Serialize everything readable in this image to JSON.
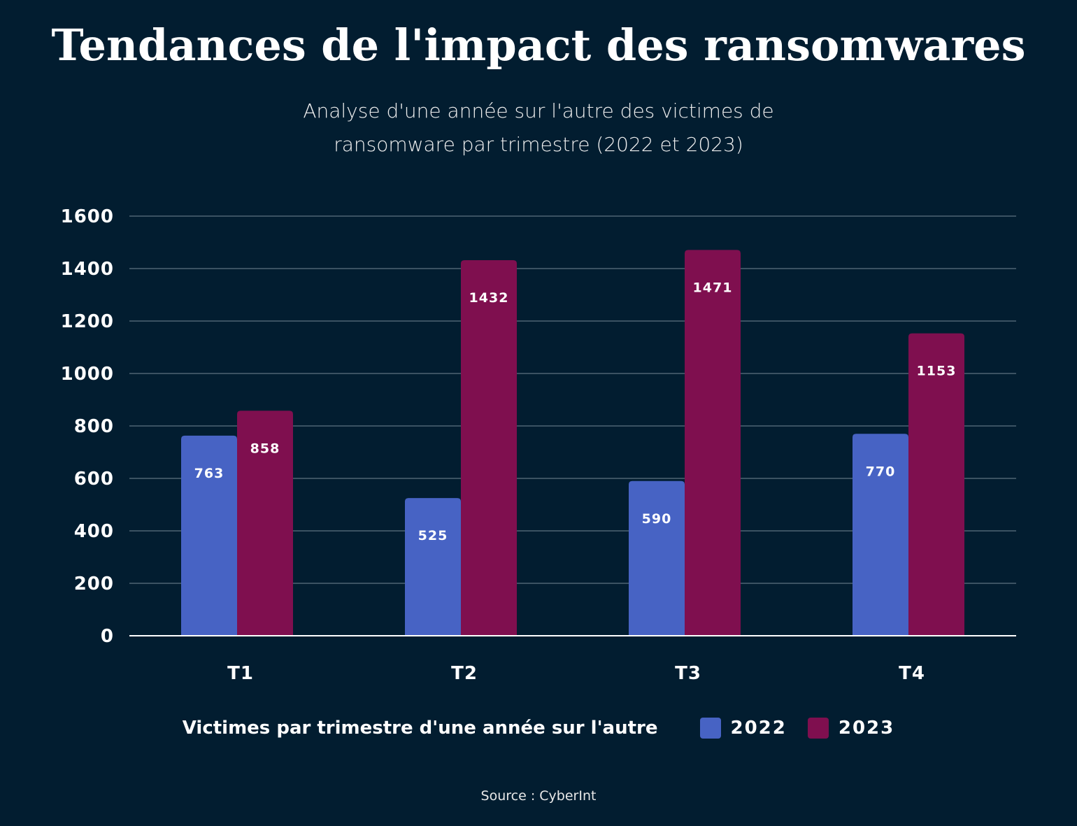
{
  "chart_data": {
    "type": "bar",
    "title": "Tendances de l'impact des ransomwares",
    "subtitle": "Analyse d'une année sur l'autre des victimes de ransomware par trimestre (2022 et 2023)",
    "categories": [
      "T1",
      "T2",
      "T3",
      "T4"
    ],
    "series": [
      {
        "name": "2022",
        "values": [
          763,
          525,
          590,
          770
        ],
        "color": "#4763c4"
      },
      {
        "name": "2023",
        "values": [
          858,
          1432,
          1471,
          1153
        ],
        "color": "#7f0f4f"
      }
    ],
    "yticks": [
      0,
      200,
      400,
      600,
      800,
      1000,
      1200,
      1400,
      1600
    ],
    "ylim": [
      0,
      1600
    ],
    "grid": true,
    "legend_title": "Victimes par trimestre d'une année sur l'autre",
    "legend_position": "bottom",
    "source": "Source : CyberInt"
  }
}
